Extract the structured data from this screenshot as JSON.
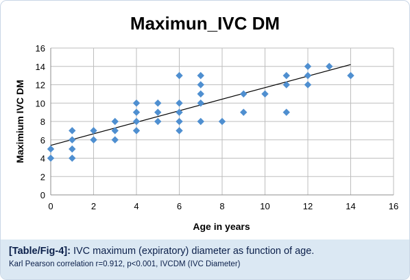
{
  "chart_data": {
    "type": "scatter",
    "title": "Maximun_IVC DM",
    "xlabel": "Age in years",
    "ylabel": "Maximium IVC DM",
    "xlim": [
      0,
      16
    ],
    "ylim": [
      0,
      16
    ],
    "xticks": [
      "0",
      "2",
      "4",
      "6",
      "8",
      "10",
      "12",
      "14",
      "16"
    ],
    "yticks": [
      "0",
      "2",
      "4",
      "6",
      "8",
      "10",
      "12",
      "14",
      "16"
    ],
    "grid": true,
    "legend": "none",
    "marker_color": "#4f8fd0",
    "trendline": {
      "type": "linear",
      "x": [
        0,
        14
      ],
      "y": [
        5.4,
        14.2
      ]
    },
    "points": [
      {
        "x": 0,
        "y": 5
      },
      {
        "x": 0,
        "y": 4
      },
      {
        "x": 1,
        "y": 7
      },
      {
        "x": 1,
        "y": 6
      },
      {
        "x": 1,
        "y": 5
      },
      {
        "x": 1,
        "y": 4
      },
      {
        "x": 2,
        "y": 7
      },
      {
        "x": 2,
        "y": 6
      },
      {
        "x": 3,
        "y": 8
      },
      {
        "x": 3,
        "y": 7
      },
      {
        "x": 3,
        "y": 6
      },
      {
        "x": 4,
        "y": 10
      },
      {
        "x": 4,
        "y": 9
      },
      {
        "x": 4,
        "y": 8
      },
      {
        "x": 4,
        "y": 7
      },
      {
        "x": 5,
        "y": 10
      },
      {
        "x": 5,
        "y": 9
      },
      {
        "x": 5,
        "y": 8
      },
      {
        "x": 6,
        "y": 13
      },
      {
        "x": 6,
        "y": 10
      },
      {
        "x": 6,
        "y": 9
      },
      {
        "x": 6,
        "y": 8
      },
      {
        "x": 6,
        "y": 7
      },
      {
        "x": 7,
        "y": 13
      },
      {
        "x": 7,
        "y": 12
      },
      {
        "x": 7,
        "y": 11
      },
      {
        "x": 7,
        "y": 10
      },
      {
        "x": 7,
        "y": 8
      },
      {
        "x": 8,
        "y": 8
      },
      {
        "x": 9,
        "y": 11
      },
      {
        "x": 9,
        "y": 9
      },
      {
        "x": 10,
        "y": 11
      },
      {
        "x": 11,
        "y": 13
      },
      {
        "x": 11,
        "y": 12
      },
      {
        "x": 11,
        "y": 9
      },
      {
        "x": 12,
        "y": 14
      },
      {
        "x": 12,
        "y": 13
      },
      {
        "x": 12,
        "y": 12
      },
      {
        "x": 13,
        "y": 14
      },
      {
        "x": 14,
        "y": 13
      }
    ]
  },
  "caption": {
    "ref": "[Table/Fig-4]:",
    "text": "IVC maximum (expiratory) diameter as function of age.",
    "note": "Karl Pearson correlation r=0.912, p<0.001, IVCDM (IVC Diameter)"
  },
  "colors": {
    "caption_bg": "#dbe8f3",
    "caption_text": "#0b1f4a",
    "marker": "#4f8fd0",
    "trendline": "#000000"
  }
}
